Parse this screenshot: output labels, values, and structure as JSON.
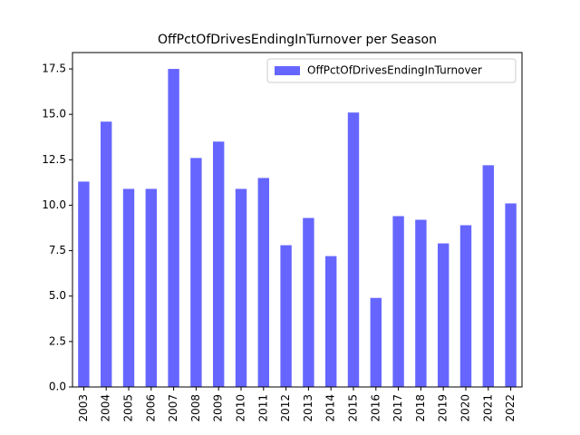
{
  "chart_data": {
    "type": "bar",
    "title": "OffPctOfDrivesEndingInTurnover per Season",
    "categories": [
      "2003",
      "2004",
      "2005",
      "2006",
      "2007",
      "2008",
      "2009",
      "2010",
      "2011",
      "2012",
      "2013",
      "2014",
      "2015",
      "2016",
      "2017",
      "2018",
      "2019",
      "2020",
      "2021",
      "2022"
    ],
    "series": [
      {
        "name": "OffPctOfDrivesEndingInTurnover",
        "color": "#6666ff",
        "values": [
          11.3,
          14.6,
          10.9,
          10.9,
          17.5,
          12.6,
          13.5,
          10.9,
          11.5,
          7.8,
          9.3,
          7.2,
          15.1,
          4.9,
          9.4,
          9.2,
          7.9,
          8.9,
          12.2,
          10.1
        ]
      }
    ],
    "ylim": [
      0,
      18.4
    ],
    "yticks": [
      {
        "value": 0,
        "label": "0.0"
      },
      {
        "value": 2.5,
        "label": "2.5"
      },
      {
        "value": 5,
        "label": "5.0"
      },
      {
        "value": 7.5,
        "label": "7.5"
      },
      {
        "value": 10,
        "label": "10.0"
      },
      {
        "value": 12.5,
        "label": "12.5"
      },
      {
        "value": 15,
        "label": "15.0"
      },
      {
        "value": 17.5,
        "label": "17.5"
      }
    ],
    "legend": "upper right",
    "grid": false
  }
}
